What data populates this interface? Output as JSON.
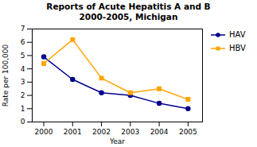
{
  "chart_data": {
    "type": "line",
    "title": "Reports of Acute Hepatitis A and B\n2000-2005, Michigan",
    "xlabel": "Year",
    "ylabel": "Rate per 100,000",
    "x": [
      2000,
      2001,
      2002,
      2003,
      2004,
      2005
    ],
    "series": [
      {
        "name": "HAV",
        "color": "#00008B",
        "marker": "circle",
        "values": [
          4.9,
          3.2,
          2.2,
          2.0,
          1.4,
          1.0
        ]
      },
      {
        "name": "HBV",
        "color": "#FFA500",
        "marker": "square",
        "values": [
          4.4,
          6.2,
          3.3,
          2.2,
          2.5,
          1.7
        ]
      }
    ],
    "xlim": [
      1999.6,
      2005.5
    ],
    "xticks": [
      2000,
      2001,
      2002,
      2003,
      2004,
      2005
    ],
    "ylim": [
      0,
      7
    ],
    "yticks": [
      0,
      1,
      2,
      3,
      4,
      5,
      6,
      7
    ],
    "grid": false,
    "legend": "right"
  }
}
